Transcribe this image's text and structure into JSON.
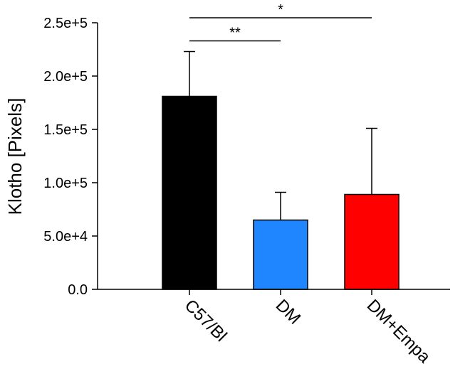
{
  "chart_data": {
    "type": "bar",
    "title": "",
    "xlabel": "",
    "ylabel": "Klotho [Pixels]",
    "ylim": [
      0,
      250000
    ],
    "y_ticks": [
      {
        "value": 0,
        "label": "0.0"
      },
      {
        "value": 50000,
        "label": "5.0e+4"
      },
      {
        "value": 100000,
        "label": "1.0e+5"
      },
      {
        "value": 150000,
        "label": "1.5e+5"
      },
      {
        "value": 200000,
        "label": "2.0e+5"
      },
      {
        "value": 250000,
        "label": "2.5e+5"
      }
    ],
    "categories": [
      "C57/Bl",
      "DM",
      "DM+Empa"
    ],
    "values": [
      181000,
      65000,
      89000
    ],
    "errors": [
      42000,
      26000,
      62000
    ],
    "colors": [
      "#000000",
      "#1f86ff",
      "#ff0000"
    ],
    "grid": false,
    "legend": "none",
    "annotations": [
      {
        "from": "C57/Bl",
        "to": "DM",
        "label": "**",
        "y": 233000
      },
      {
        "from": "C57/Bl",
        "to": "DM+Empa",
        "label": "*",
        "y": 256000
      }
    ]
  }
}
